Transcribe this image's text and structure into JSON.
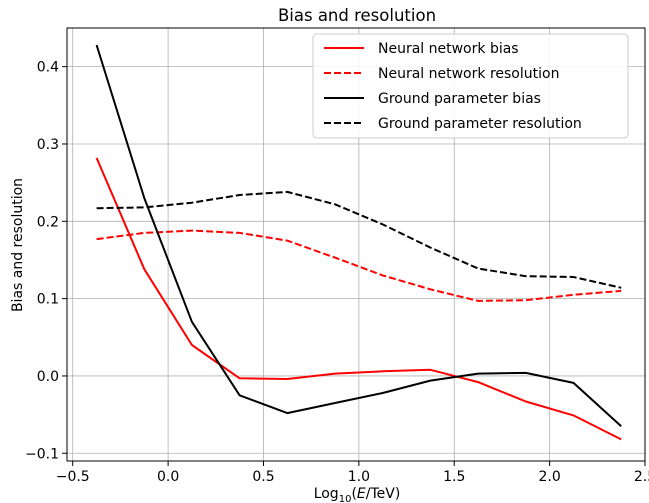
{
  "chart_data": {
    "type": "line",
    "title": "Bias and resolution",
    "xlabel_prefix": "Log",
    "xlabel_sub": "10",
    "xlabel_open": "(",
    "xlabel_var": "E",
    "xlabel_rest": "/TeV)",
    "ylabel": "Bias and resolution",
    "xlim": [
      -0.53,
      2.5
    ],
    "ylim": [
      -0.11,
      0.45
    ],
    "grid": true,
    "legend_position": "top-right",
    "x_ticks": [
      -0.5,
      0.0,
      0.5,
      1.0,
      1.5,
      2.0,
      2.5
    ],
    "x_tick_labels": [
      "−0.5",
      "0.0",
      "0.5",
      "1.0",
      "1.5",
      "2.0",
      "2.5"
    ],
    "y_ticks": [
      -0.1,
      0.0,
      0.1,
      0.2,
      0.3,
      0.4
    ],
    "y_tick_labels": [
      "−0.1",
      "0.0",
      "0.1",
      "0.2",
      "0.3",
      "0.4"
    ],
    "x": [
      -0.375,
      -0.125,
      0.125,
      0.375,
      0.625,
      0.875,
      1.125,
      1.375,
      1.625,
      1.875,
      2.125,
      2.375
    ],
    "series": [
      {
        "name": "Neural network bias",
        "color": "#ff0000",
        "dash": "solid",
        "values": [
          0.282,
          0.138,
          0.04,
          -0.003,
          -0.004,
          0.003,
          0.006,
          0.008,
          -0.008,
          -0.033,
          -0.051,
          -0.082
        ]
      },
      {
        "name": "Neural network resolution",
        "color": "#ff0000",
        "dash": "dashed",
        "values": [
          0.177,
          0.185,
          0.188,
          0.185,
          0.175,
          0.153,
          0.13,
          0.112,
          0.097,
          0.098,
          0.105,
          0.11
        ]
      },
      {
        "name": "Ground parameter bias",
        "color": "#000000",
        "dash": "solid",
        "values": [
          0.428,
          0.23,
          0.07,
          -0.025,
          -0.048,
          -0.035,
          -0.022,
          -0.006,
          0.003,
          0.004,
          -0.009,
          -0.065
        ]
      },
      {
        "name": "Ground parameter resolution",
        "color": "#000000",
        "dash": "dashed",
        "values": [
          0.217,
          0.218,
          0.224,
          0.234,
          0.238,
          0.222,
          0.196,
          0.166,
          0.139,
          0.129,
          0.128,
          0.114
        ]
      }
    ]
  }
}
